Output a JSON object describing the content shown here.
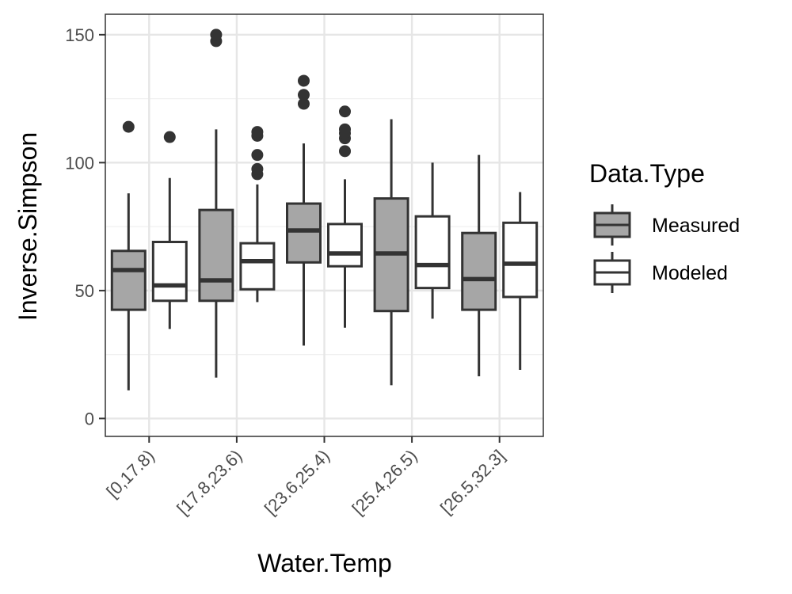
{
  "chart_data": {
    "type": "boxplot",
    "xlabel": "Water.Temp",
    "ylabel": "Inverse.Simpson",
    "ylim": [
      -7,
      158
    ],
    "yticks": [
      0,
      50,
      100,
      150
    ],
    "grid": true,
    "legend_placement": "right",
    "legend_title": "Data.Type",
    "categories": [
      "[0,17.8)",
      "[17.8,23.6)",
      "[23.6,25.4)",
      "[25.4,26.5)",
      "[26.5,32.3]"
    ],
    "series": [
      {
        "name": "Measured",
        "fill": "#a6a6a6",
        "boxes": [
          {
            "lower_whisker": 11,
            "q1": 42.5,
            "median": 58,
            "q3": 65.5,
            "upper_whisker": 88,
            "outliers": [
              114
            ]
          },
          {
            "lower_whisker": 16,
            "q1": 46,
            "median": 54,
            "q3": 81.5,
            "upper_whisker": 113,
            "outliers": [
              147.5,
              150
            ]
          },
          {
            "lower_whisker": 28.5,
            "q1": 61,
            "median": 73.5,
            "q3": 84,
            "upper_whisker": 107.5,
            "outliers": [
              123,
              126.5,
              132
            ]
          },
          {
            "lower_whisker": 13,
            "q1": 42,
            "median": 64.5,
            "q3": 86,
            "upper_whisker": 117,
            "outliers": []
          },
          {
            "lower_whisker": 16.5,
            "q1": 42.5,
            "median": 54.5,
            "q3": 72.5,
            "upper_whisker": 103,
            "outliers": []
          }
        ]
      },
      {
        "name": "Modeled",
        "fill": "#ffffff",
        "boxes": [
          {
            "lower_whisker": 35,
            "q1": 46,
            "median": 52,
            "q3": 69,
            "upper_whisker": 94,
            "outliers": [
              110
            ]
          },
          {
            "lower_whisker": 45.5,
            "q1": 50.5,
            "median": 61.5,
            "q3": 68.5,
            "upper_whisker": 91.5,
            "outliers": [
              95.5,
              97.5,
              103,
              110.5,
              112
            ]
          },
          {
            "lower_whisker": 35.5,
            "q1": 59.5,
            "median": 64.5,
            "q3": 76,
            "upper_whisker": 93.5,
            "outliers": [
              104.5,
              109.5,
              111.5,
              113,
              120
            ]
          },
          {
            "lower_whisker": 39,
            "q1": 51,
            "median": 60,
            "q3": 79,
            "upper_whisker": 100,
            "outliers": []
          },
          {
            "lower_whisker": 19,
            "q1": 47.5,
            "median": 60.5,
            "q3": 76.5,
            "upper_whisker": 88.5,
            "outliers": []
          }
        ]
      }
    ]
  }
}
